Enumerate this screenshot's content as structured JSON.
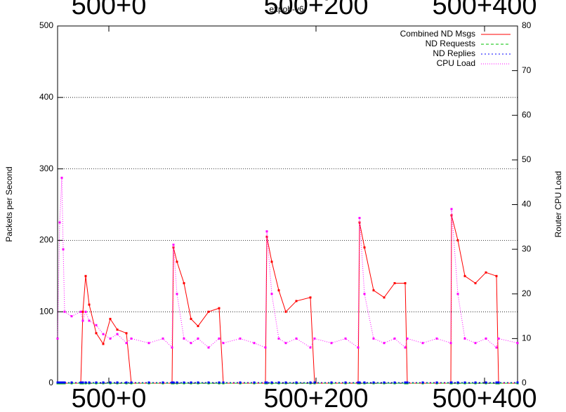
{
  "chart_data": {
    "type": "line",
    "title": "expob-v6",
    "ylabel": "Packets per Second",
    "y2label": "Router CPU Load",
    "xlim": [
      0,
      655
    ],
    "xticks": [
      {
        "value": 73,
        "label": "500+0"
      },
      {
        "value": 368,
        "label": "500+200"
      },
      {
        "value": 608,
        "label": "500+400"
      }
    ],
    "ylim": [
      0,
      500
    ],
    "yticks": [
      0,
      100,
      200,
      300,
      400,
      500
    ],
    "y2lim": [
      0,
      80
    ],
    "y2ticks": [
      0,
      10,
      20,
      30,
      40,
      50,
      60,
      70,
      80
    ],
    "grid": true,
    "legend": "top-right",
    "x": [
      0,
      3,
      6,
      8,
      10,
      20,
      33,
      36,
      40,
      45,
      55,
      65,
      75,
      85,
      98,
      105,
      130,
      150,
      163,
      165,
      170,
      180,
      190,
      200,
      215,
      230,
      236,
      260,
      280,
      296,
      298,
      305,
      315,
      325,
      340,
      360,
      366,
      390,
      410,
      428,
      430,
      437,
      450,
      465,
      480,
      495,
      498,
      520,
      540,
      560,
      561,
      570,
      580,
      595,
      610,
      625,
      628,
      655
    ],
    "series": [
      {
        "name": "Combined ND Msgs",
        "color": "#ff0000",
        "axis": "y",
        "values": [
          0,
          0,
          0,
          0,
          0,
          0,
          0,
          100,
          150,
          110,
          70,
          55,
          90,
          75,
          70,
          0,
          0,
          0,
          0,
          190,
          170,
          140,
          90,
          80,
          100,
          105,
          0,
          0,
          0,
          0,
          205,
          170,
          130,
          100,
          115,
          120,
          0,
          0,
          0,
          0,
          225,
          190,
          130,
          120,
          140,
          140,
          0,
          0,
          0,
          0,
          235,
          200,
          150,
          140,
          155,
          150,
          0,
          0
        ]
      },
      {
        "name": "ND Requests",
        "color": "#00c000",
        "axis": "y",
        "values": [
          0,
          0,
          0,
          0,
          0,
          0,
          0,
          0,
          0,
          0,
          0,
          0,
          0,
          0,
          0,
          0,
          0,
          0,
          0,
          0,
          0,
          0,
          0,
          0,
          0,
          0,
          0,
          0,
          0,
          0,
          0,
          0,
          0,
          0,
          0,
          0,
          0,
          0,
          0,
          0,
          0,
          0,
          0,
          0,
          0,
          0,
          0,
          0,
          0,
          0,
          0,
          0,
          0,
          0,
          0,
          0,
          0,
          0
        ]
      },
      {
        "name": "ND Replies",
        "color": "#0000ff",
        "axis": "y",
        "values": [
          1,
          1,
          1,
          1,
          1,
          1,
          1,
          1,
          1,
          1,
          1,
          1,
          1,
          1,
          1,
          1,
          1,
          1,
          1,
          1,
          1,
          1,
          1,
          1,
          1,
          1,
          1,
          1,
          1,
          1,
          1,
          1,
          1,
          1,
          1,
          1,
          1,
          1,
          1,
          1,
          1,
          1,
          1,
          1,
          1,
          1,
          1,
          1,
          1,
          1,
          1,
          1,
          1,
          1,
          1,
          1,
          1,
          1
        ]
      },
      {
        "name": "CPU Load",
        "color": "#ff00ff",
        "axis": "y2",
        "values": [
          10,
          36,
          46,
          30,
          16,
          15,
          16,
          14,
          16,
          14,
          13,
          11,
          10,
          11,
          9,
          10,
          9,
          10,
          8,
          31,
          20,
          10,
          9,
          10,
          8,
          10,
          9,
          10,
          9,
          8,
          34,
          20,
          10,
          9,
          10,
          8,
          10,
          9,
          10,
          8,
          37,
          20,
          10,
          9,
          10,
          8,
          10,
          9,
          10,
          9,
          39,
          20,
          10,
          9,
          10,
          8,
          10,
          9
        ]
      }
    ]
  }
}
